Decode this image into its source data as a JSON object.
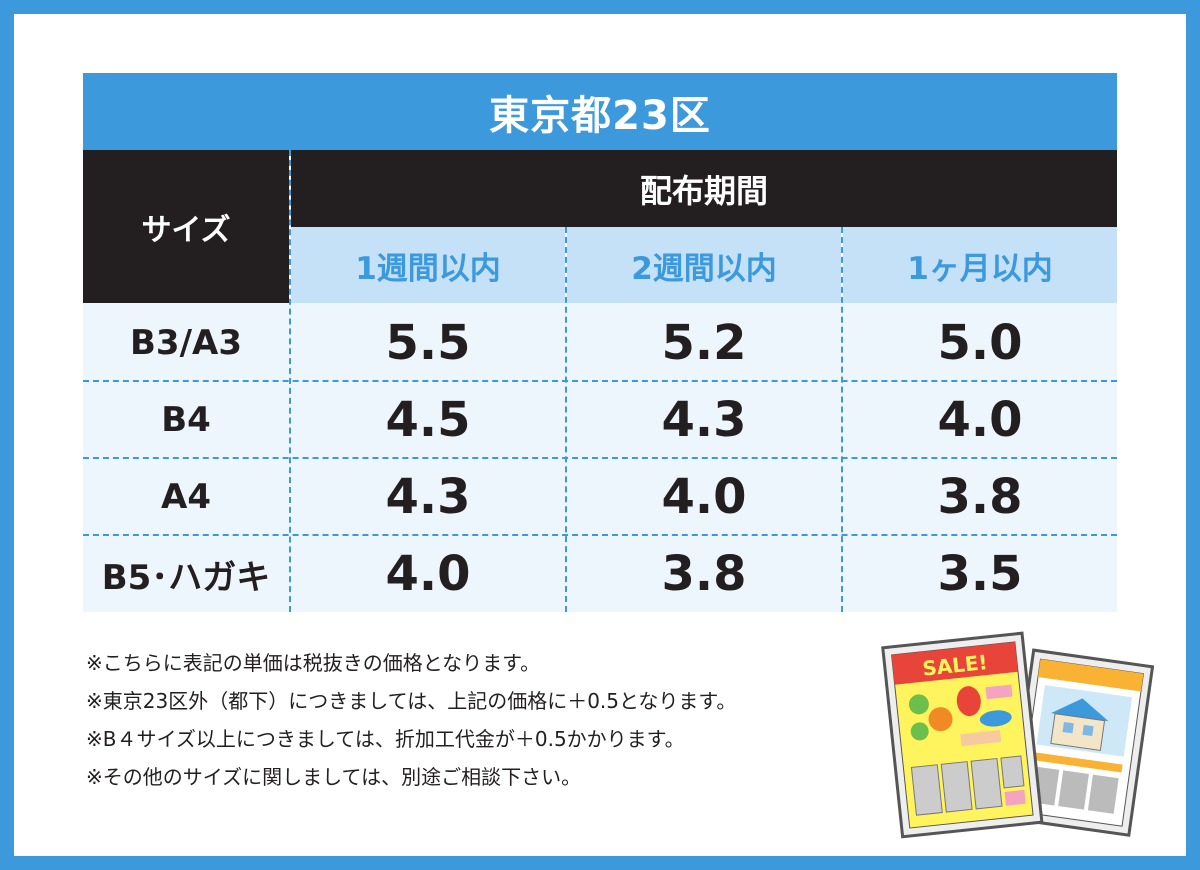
{
  "title": "東京都23区",
  "header": {
    "size_label": "サイズ",
    "period_label": "配布期間",
    "columns": [
      "1週間以内",
      "2週間以内",
      "1ヶ月以内"
    ]
  },
  "rows": [
    {
      "size": "B3/A3",
      "values": [
        "5.5",
        "5.2",
        "5.0"
      ]
    },
    {
      "size": "B4",
      "values": [
        "4.5",
        "4.3",
        "4.0"
      ]
    },
    {
      "size": "A4",
      "values": [
        "4.3",
        "4.0",
        "3.8"
      ]
    },
    {
      "size": "B5･ハガキ",
      "values": [
        "4.0",
        "3.8",
        "3.5"
      ]
    }
  ],
  "notes": [
    "※こちらに表記の単価は税抜きの価格となります。",
    "※東京23区外（都下）につきましては、上記の価格に＋0.5となります。",
    "※B４サイズ以上につきましては、折加工代金が＋0.5かかります。",
    "※その他のサイズに関しましては、別途ご相談下さい。"
  ],
  "illustration": {
    "sale_text": "SALE!"
  },
  "colors": {
    "accent": "#3b99dc",
    "dark": "#231f20",
    "header_light": "#c5e1f7",
    "row_bg": "#eef6fd"
  }
}
